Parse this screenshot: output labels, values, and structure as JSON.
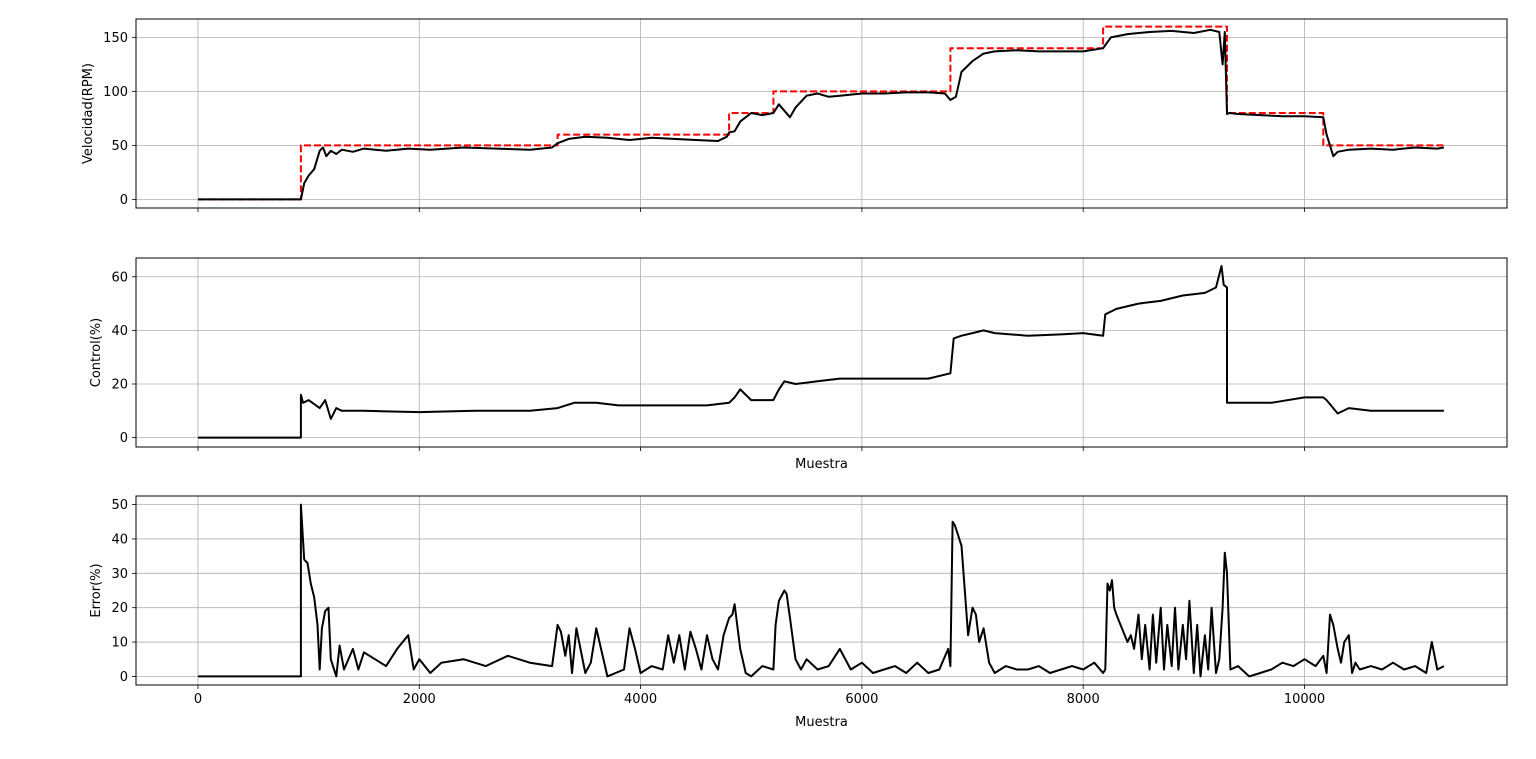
{
  "chart_data": [
    {
      "type": "line",
      "xlabel": "",
      "ylabel": "Velocidad(RPM)",
      "xlim": [
        -560,
        11830
      ],
      "ylim": [
        -8,
        167
      ],
      "xticks": [
        0,
        2000,
        4000,
        6000,
        8000,
        10000
      ],
      "yticks": [
        0,
        50,
        100,
        150
      ],
      "grid": true,
      "series": [
        {
          "style": "dashed",
          "color": "#ff0000",
          "x": [
            0,
            930,
            930,
            3250,
            3250,
            4800,
            4800,
            5200,
            5200,
            6800,
            6800,
            8180,
            8180,
            9300,
            9300,
            10170,
            10170,
            11260
          ],
          "y": [
            0,
            0,
            50,
            50,
            60,
            60,
            80,
            80,
            100,
            100,
            140,
            140,
            160,
            160,
            80,
            80,
            50,
            50
          ]
        },
        {
          "style": "solid",
          "color": "#000000",
          "x": [
            0,
            930,
            960,
            1000,
            1050,
            1100,
            1130,
            1160,
            1200,
            1250,
            1300,
            1400,
            1500,
            1700,
            1900,
            2100,
            2400,
            2700,
            3000,
            3200,
            3250,
            3350,
            3500,
            3700,
            3900,
            4100,
            4300,
            4500,
            4700,
            4780,
            4800,
            4850,
            4900,
            5000,
            5100,
            5200,
            5250,
            5350,
            5400,
            5500,
            5600,
            5700,
            5800,
            5900,
            6000,
            6200,
            6400,
            6600,
            6750,
            6800,
            6850,
            6900,
            7000,
            7100,
            7200,
            7400,
            7600,
            7800,
            8000,
            8180,
            8250,
            8400,
            8600,
            8800,
            9000,
            9150,
            9230,
            9260,
            9280,
            9300,
            9320,
            9400,
            9600,
            9800,
            10000,
            10170,
            10200,
            10260,
            10300,
            10400,
            10600,
            10800,
            11000,
            11200,
            11260
          ],
          "y": [
            0,
            0,
            15,
            22,
            28,
            45,
            48,
            40,
            45,
            42,
            46,
            44,
            47,
            45,
            47,
            46,
            48,
            47,
            46,
            48,
            52,
            56,
            58,
            57,
            55,
            57,
            56,
            55,
            54,
            58,
            62,
            63,
            72,
            80,
            78,
            80,
            88,
            76,
            85,
            96,
            98,
            95,
            96,
            97,
            98,
            98,
            99,
            99,
            98,
            92,
            95,
            118,
            128,
            135,
            137,
            138,
            137,
            137,
            137,
            140,
            150,
            153,
            155,
            156,
            154,
            157,
            155,
            125,
            155,
            79,
            80,
            79,
            78,
            77,
            77,
            76,
            60,
            40,
            44,
            46,
            47,
            46,
            48,
            47,
            48
          ]
        }
      ]
    },
    {
      "type": "line",
      "xlabel": "Muestra",
      "ylabel": "Control(%)",
      "xlim": [
        -560,
        11830
      ],
      "ylim": [
        -3.5,
        67
      ],
      "xticks": [
        0,
        2000,
        4000,
        6000,
        8000,
        10000
      ],
      "yticks": [
        0,
        20,
        40,
        60
      ],
      "grid": true,
      "series": [
        {
          "style": "solid",
          "color": "#000000",
          "x": [
            0,
            930,
            930,
            950,
            1000,
            1100,
            1150,
            1200,
            1250,
            1300,
            1500,
            2000,
            2500,
            3000,
            3250,
            3400,
            3600,
            3800,
            4000,
            4200,
            4400,
            4600,
            4800,
            4850,
            4900,
            5000,
            5200,
            5250,
            5300,
            5400,
            5600,
            5800,
            6000,
            6200,
            6400,
            6600,
            6800,
            6830,
            6900,
            7000,
            7100,
            7200,
            7500,
            7800,
            8000,
            8180,
            8200,
            8300,
            8500,
            8700,
            8900,
            9100,
            9200,
            9250,
            9270,
            9300,
            9300,
            9500,
            9700,
            10000,
            10170,
            10200,
            10300,
            10400,
            10600,
            10800,
            11000,
            11260
          ],
          "y": [
            0,
            0,
            16,
            13,
            14,
            11,
            14,
            7,
            11,
            10,
            10,
            9.5,
            10,
            10,
            11,
            13,
            13,
            12,
            12,
            12,
            12,
            12,
            13,
            15,
            18,
            14,
            14,
            18,
            21,
            20,
            21,
            22,
            22,
            22,
            22,
            22,
            24,
            37,
            38,
            39,
            40,
            39,
            38,
            38.5,
            39,
            38,
            46,
            48,
            50,
            51,
            53,
            54,
            56,
            64,
            57,
            56,
            13,
            13,
            13,
            15,
            15,
            14,
            9,
            11,
            10,
            10,
            10,
            10
          ]
        }
      ]
    },
    {
      "type": "line",
      "xlabel": "Muestra",
      "ylabel": "Error(%)",
      "xlim": [
        -560,
        11830
      ],
      "ylim": [
        -2.5,
        52.5
      ],
      "xticks": [
        0,
        2000,
        4000,
        6000,
        8000,
        10000
      ],
      "yticks": [
        0,
        10,
        20,
        30,
        40,
        50
      ],
      "grid": true,
      "series": [
        {
          "style": "solid",
          "color": "#000000",
          "x": [
            0,
            930,
            930,
            960,
            990,
            1020,
            1050,
            1080,
            1100,
            1120,
            1150,
            1180,
            1200,
            1250,
            1280,
            1320,
            1400,
            1450,
            1500,
            1600,
            1700,
            1800,
            1900,
            1950,
            2000,
            2100,
            2200,
            2400,
            2600,
            2800,
            3000,
            3200,
            3250,
            3280,
            3320,
            3350,
            3380,
            3420,
            3500,
            3550,
            3600,
            3700,
            3850,
            3900,
            3950,
            4000,
            4100,
            4200,
            4250,
            4300,
            4350,
            4400,
            4450,
            4500,
            4550,
            4600,
            4650,
            4700,
            4750,
            4800,
            4830,
            4850,
            4900,
            4950,
            5000,
            5100,
            5200,
            5220,
            5250,
            5300,
            5320,
            5350,
            5400,
            5450,
            5500,
            5600,
            5700,
            5800,
            5900,
            6000,
            6100,
            6200,
            6300,
            6400,
            6500,
            6600,
            6700,
            6780,
            6800,
            6820,
            6840,
            6860,
            6900,
            6930,
            6960,
            7000,
            7030,
            7060,
            7100,
            7150,
            7200,
            7300,
            7400,
            7500,
            7600,
            7700,
            7800,
            7900,
            8000,
            8100,
            8180,
            8200,
            8220,
            8240,
            8260,
            8280,
            8300,
            8350,
            8400,
            8430,
            8460,
            8500,
            8530,
            8560,
            8600,
            8630,
            8660,
            8700,
            8730,
            8760,
            8800,
            8830,
            8860,
            8900,
            8930,
            8960,
            9000,
            9030,
            9060,
            9100,
            9130,
            9160,
            9200,
            9230,
            9260,
            9280,
            9300,
            9330,
            9400,
            9500,
            9600,
            9700,
            9800,
            9900,
            10000,
            10100,
            10170,
            10200,
            10230,
            10260,
            10300,
            10330,
            10360,
            10400,
            10430,
            10460,
            10500,
            10600,
            10700,
            10800,
            10900,
            11000,
            11100,
            11150,
            11200,
            11260
          ],
          "y": [
            0,
            0,
            50,
            34,
            33,
            27,
            23,
            15,
            2,
            14,
            19,
            20,
            5,
            0,
            9,
            2,
            8,
            2,
            7,
            5,
            3,
            8,
            12,
            2,
            5,
            1,
            4,
            5,
            3,
            6,
            4,
            3,
            15,
            13,
            6,
            12,
            1,
            14,
            1,
            4,
            14,
            0,
            2,
            14,
            8,
            1,
            3,
            2,
            12,
            4,
            12,
            2,
            13,
            8,
            2,
            12,
            5,
            2,
            12,
            17,
            18,
            21,
            8,
            1,
            0,
            3,
            2,
            15,
            22,
            25,
            24,
            17,
            5,
            2,
            5,
            2,
            3,
            8,
            2,
            4,
            1,
            2,
            3,
            1,
            4,
            1,
            2,
            8,
            3,
            45,
            44,
            42,
            38,
            25,
            12,
            20,
            18,
            10,
            14,
            4,
            1,
            3,
            2,
            2,
            3,
            1,
            2,
            3,
            2,
            4,
            1,
            2,
            27,
            25,
            28,
            20,
            18,
            14,
            10,
            12,
            8,
            18,
            5,
            15,
            2,
            18,
            4,
            20,
            2,
            15,
            3,
            20,
            2,
            15,
            5,
            22,
            1,
            15,
            0,
            12,
            2,
            20,
            1,
            5,
            20,
            36,
            30,
            2,
            3,
            0,
            1,
            2,
            4,
            3,
            5,
            3,
            6,
            1,
            18,
            15,
            8,
            4,
            10,
            12,
            1,
            4,
            2,
            3,
            2,
            4,
            2,
            3,
            1,
            10,
            2,
            3
          ]
        }
      ]
    }
  ]
}
